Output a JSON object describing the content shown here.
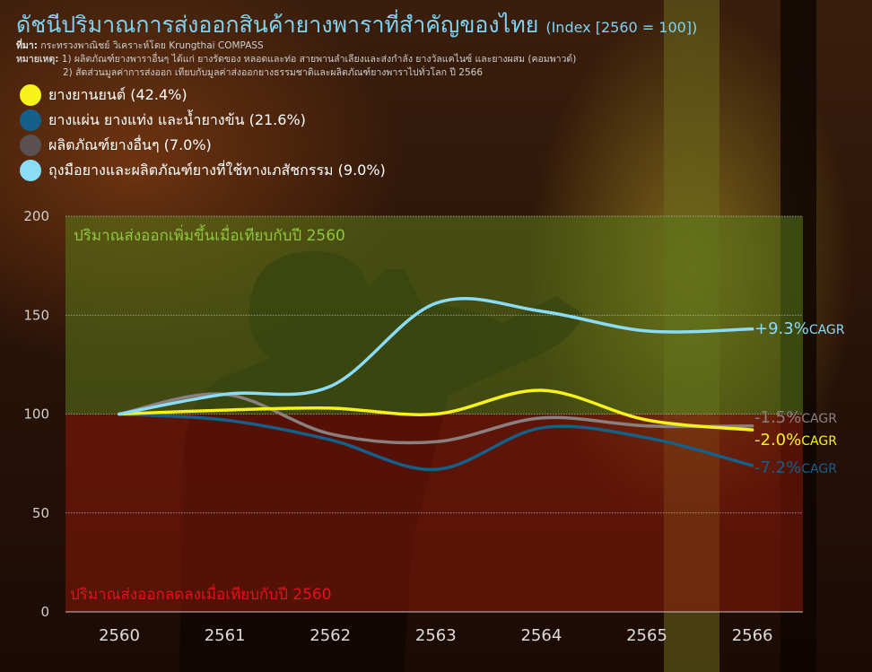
{
  "title": "ดัชนีปริมาณการส่งออกสินค้ายางพาราที่สำคัญของไทย",
  "subtitle": "(Index [2560 = 100])",
  "source_label": "ที่มา:",
  "source_text": "กระทรวงพาณิชย์ วิเคราะห์โดย Krungthai COMPASS",
  "note_label": "หมายเหตุ:",
  "note_1": "1) ผลิตภัณฑ์ยางพาราอื่นๆ ได้แก่ ยางรัดของ หลอดและท่อ สายพานลำเลียงและส่งกำลัง ยางวัลแคไนซ์ และยางผสม (คอมพาวด์)",
  "note_2": "2) สัดส่วนมูลค่าการส่งออก เทียบกับมูลค่าส่งออกยางธรรมชาติและผลิตภัณฑ์ยางพาราไปทั่วโลก ปี 2566",
  "chart_data": {
    "type": "line",
    "x": [
      2560,
      2561,
      2562,
      2563,
      2564,
      2565,
      2566
    ],
    "ylim": [
      0,
      200
    ],
    "yticks": [
      0,
      50,
      100,
      150,
      200
    ],
    "grid": true,
    "legend_position": "top-left",
    "zones": {
      "upper_label": "ปริมาณส่งออกเพิ่มขึ้นเมื่อเทียบกับปี 2560",
      "lower_label": "ปริมาณส่งออกลดลงเมื่อเทียบกับปี 2560",
      "upper_color": "#5a7a1a",
      "lower_color": "#8a1a0a",
      "upper_text_color": "#8fc63f",
      "lower_text_color": "#e8101a"
    },
    "series": [
      {
        "name": "ยางยานยนต์ (42.4%)",
        "color": "#f7f21a",
        "values": [
          100,
          102,
          103,
          100,
          112,
          97,
          92
        ],
        "cagr_value": "-2.0%",
        "cagr_suffix": "CAGR"
      },
      {
        "name": "ยางแผ่น ยางแท่ง และน้ำยางข้น (21.6%)",
        "color": "#15608a",
        "values": [
          100,
          97,
          87,
          72,
          93,
          88,
          74
        ],
        "cagr_value": "-7.2%",
        "cagr_suffix": "CAGR"
      },
      {
        "name": "ผลิตภัณฑ์ยางอื่นๆ (7.0%)",
        "color": "#5a5050",
        "line_color": "#8a8080",
        "values": [
          100,
          110,
          90,
          86,
          98,
          94,
          94
        ],
        "cagr_value": "-1.5%",
        "cagr_suffix": "CAGR"
      },
      {
        "name": "ถุงมือยางและผลิตภัณฑ์ยางที่ใช้ทางเภสัชกรรม (9.0%)",
        "color": "#8adcf7",
        "values": [
          100,
          110,
          114,
          156,
          152,
          142,
          143
        ],
        "cagr_value": "+9.3%",
        "cagr_suffix": "CAGR"
      }
    ]
  }
}
